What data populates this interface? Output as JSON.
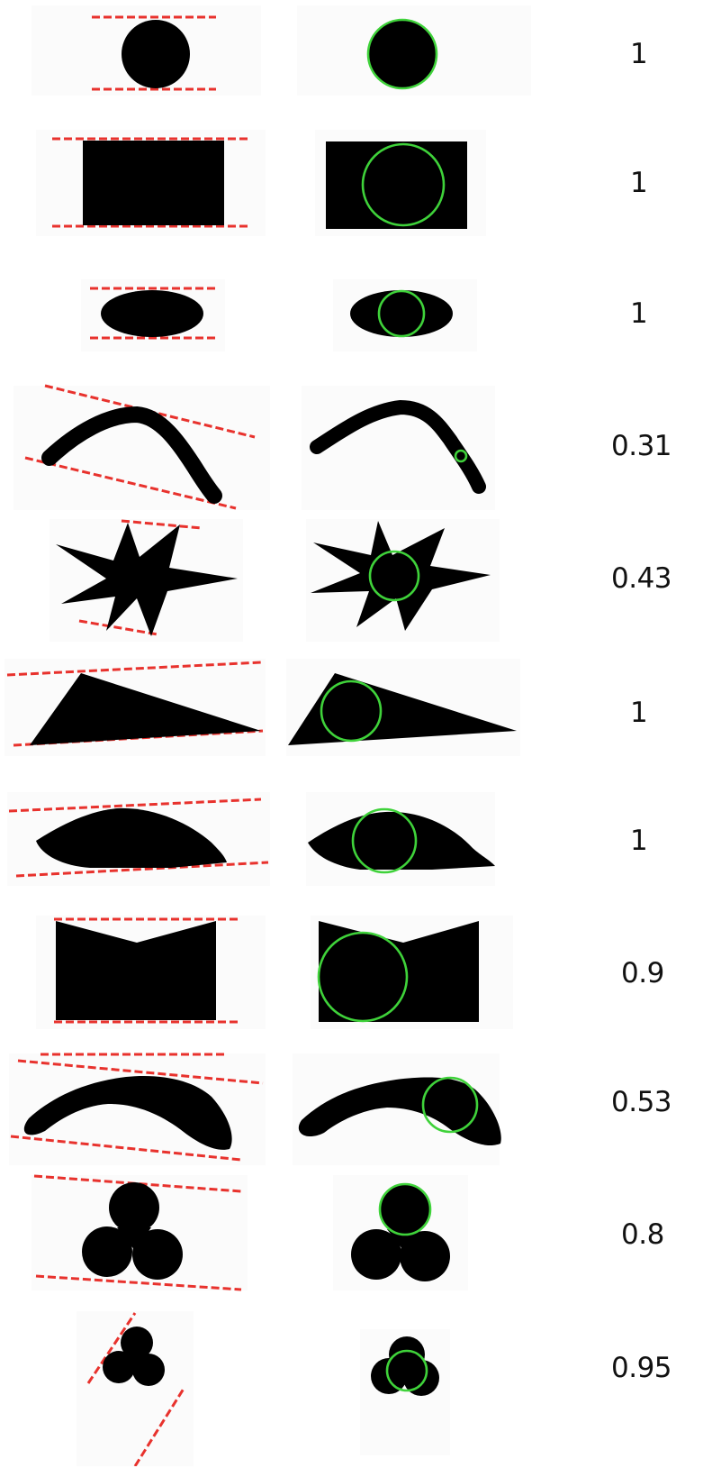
{
  "rows": [
    {
      "value": "1"
    },
    {
      "value": "1"
    },
    {
      "value": "1"
    },
    {
      "value": "0.31"
    },
    {
      "value": "0.43"
    },
    {
      "value": "1"
    },
    {
      "value": "1"
    },
    {
      "value": "0.9"
    },
    {
      "value": "0.53"
    },
    {
      "value": "0.8"
    },
    {
      "value": "0.95"
    }
  ],
  "colors": {
    "width_lines": "#e8322d",
    "inscribed_circle": "#3fd23a",
    "shape": "#000000"
  }
}
